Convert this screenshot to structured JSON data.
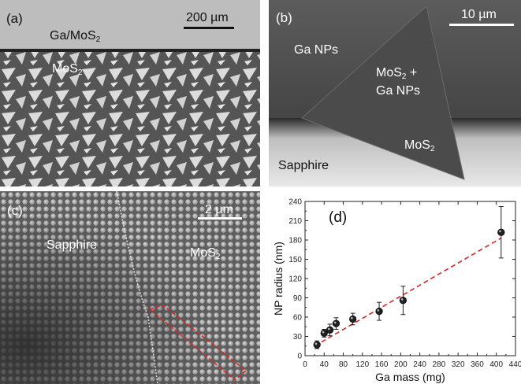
{
  "panel_a": {
    "tag": "(a)",
    "scale_label": "200 µm",
    "top_region_label": "Ga/MoS",
    "top_region_sub": "2",
    "bottom_region_label": "MoS",
    "bottom_region_sub": "2"
  },
  "panel_b": {
    "tag": "(b)",
    "scale_label": "10 µm",
    "label_np": "Ga NPs",
    "label_mix_1": "MoS",
    "label_mix_sub": "2",
    "label_mix_2": " +",
    "label_mix_3": "Ga NPs",
    "label_mos": "MoS",
    "label_mos_sub": "2",
    "label_sapphire": "Sapphire"
  },
  "panel_c": {
    "tag": "(c)",
    "scale_label": "2 µm",
    "label_sapphire": "Sapphire",
    "label_mos": "MoS",
    "label_mos_sub": "2"
  },
  "chart_data": {
    "tag": "(d)",
    "type": "scatter",
    "xlabel": "Ga mass (mg)",
    "ylabel": "NP radius (nm)",
    "xlim": [
      0,
      440
    ],
    "ylim": [
      0,
      240
    ],
    "xticks": [
      0,
      40,
      80,
      120,
      160,
      200,
      240,
      280,
      320,
      360,
      400,
      440
    ],
    "yticks": [
      0,
      30,
      60,
      90,
      120,
      150,
      180,
      210,
      240
    ],
    "points": [
      {
        "x": 25,
        "y": 17,
        "err": 6
      },
      {
        "x": 40,
        "y": 35,
        "err": 6
      },
      {
        "x": 52,
        "y": 40,
        "err": 9
      },
      {
        "x": 65,
        "y": 50,
        "err": 9
      },
      {
        "x": 100,
        "y": 57,
        "err": 9
      },
      {
        "x": 155,
        "y": 69,
        "err": 14
      },
      {
        "x": 205,
        "y": 86,
        "err": 22
      },
      {
        "x": 410,
        "y": 192,
        "err": 40
      }
    ],
    "fit_line": {
      "x": [
        20,
        410
      ],
      "y": [
        15,
        183
      ],
      "color": "#d62728"
    },
    "marker_color": "#222222"
  }
}
